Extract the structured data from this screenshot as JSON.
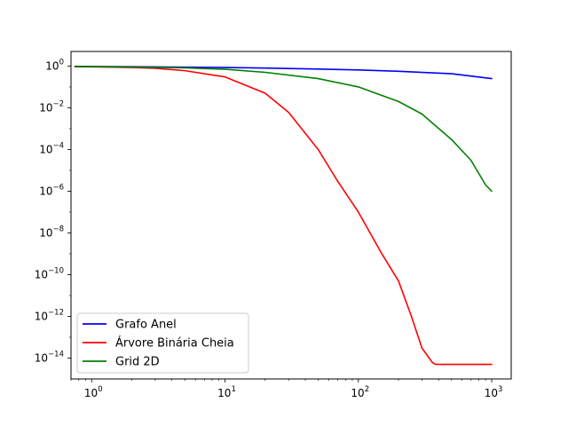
{
  "chart_data": {
    "type": "line",
    "title": "",
    "xlabel": "",
    "ylabel": "",
    "xscale": "log",
    "yscale": "log",
    "xlim": [
      0.7,
      1400
    ],
    "ylim": [
      1e-15,
      5
    ],
    "legend_position": "lower-left",
    "grid": false,
    "x_ticks": [
      {
        "base": "10",
        "exp": "0",
        "value": 1
      },
      {
        "base": "10",
        "exp": "1",
        "value": 10
      },
      {
        "base": "10",
        "exp": "2",
        "value": 100
      },
      {
        "base": "10",
        "exp": "3",
        "value": 1000
      }
    ],
    "y_ticks": [
      {
        "base": "10",
        "exp": "0",
        "value": 1
      },
      {
        "base": "10",
        "exp": "−2",
        "value": 0.01
      },
      {
        "base": "10",
        "exp": "−4",
        "value": 0.0001
      },
      {
        "base": "10",
        "exp": "−6",
        "value": 1e-06
      },
      {
        "base": "10",
        "exp": "−8",
        "value": 1e-08
      },
      {
        "base": "10",
        "exp": "−10",
        "value": 1e-10
      },
      {
        "base": "10",
        "exp": "−12",
        "value": 1e-12
      },
      {
        "base": "10",
        "exp": "−14",
        "value": 1e-14
      }
    ],
    "series": [
      {
        "name": "Grafo Anel",
        "color": "#0000ff",
        "x": [
          0.75,
          1,
          2,
          5,
          10,
          20,
          50,
          100,
          200,
          500,
          1000
        ],
        "y": [
          0.96,
          0.95,
          0.93,
          0.89,
          0.85,
          0.8,
          0.72,
          0.65,
          0.56,
          0.43,
          0.25
        ]
      },
      {
        "name": "Árvore Binária Cheia",
        "color": "#ff0000",
        "x": [
          0.75,
          1,
          2,
          3,
          5,
          10,
          20,
          30,
          50,
          70,
          100,
          150,
          200,
          250,
          300,
          340,
          360,
          380,
          500,
          700,
          1000
        ],
        "y": [
          0.93,
          0.92,
          0.85,
          0.78,
          0.6,
          0.3,
          0.05,
          0.006,
          0.0001,
          3e-06,
          1e-07,
          1e-09,
          5e-11,
          1e-12,
          3e-14,
          1e-14,
          6e-15,
          5e-15,
          5e-15,
          5e-15,
          5e-15
        ]
      },
      {
        "name": "Grid 2D",
        "color": "#008000",
        "x": [
          0.75,
          1,
          2,
          5,
          10,
          20,
          50,
          100,
          200,
          300,
          500,
          700,
          900,
          1000
        ],
        "y": [
          0.95,
          0.94,
          0.9,
          0.82,
          0.7,
          0.5,
          0.25,
          0.1,
          0.02,
          0.005,
          0.0003,
          3e-05,
          2e-06,
          1e-06
        ]
      }
    ]
  }
}
